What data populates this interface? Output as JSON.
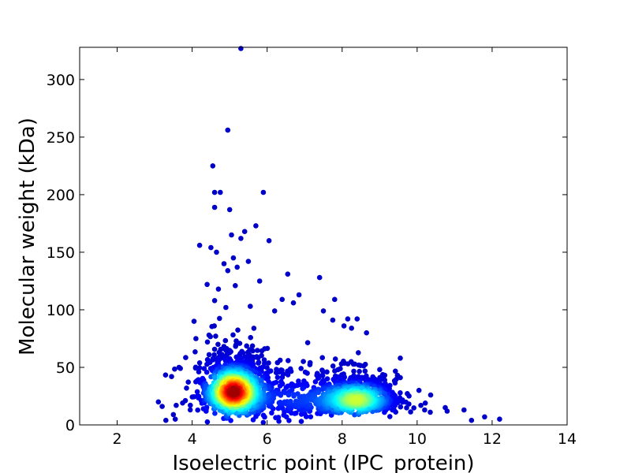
{
  "chart_data": {
    "type": "scatter",
    "title": "",
    "xlabel": "Isoelectric point (IPC_protein)",
    "ylabel": "Molecular weight (kDa)",
    "xlim": [
      1,
      14
    ],
    "ylim": [
      0,
      328
    ],
    "xticks": [
      2,
      4,
      6,
      8,
      10,
      12,
      14
    ],
    "yticks": [
      0,
      50,
      100,
      150,
      200,
      250,
      300
    ],
    "grid": false,
    "legend": "none",
    "colormap": "jet (point density)",
    "point_color_low": "#0000c8",
    "point_color_high": "#a00000",
    "clusters": [
      {
        "center": [
          5.1,
          29
        ],
        "spread": [
          0.45,
          13
        ],
        "count": 1200
      },
      {
        "center": [
          8.4,
          22
        ],
        "spread": [
          0.55,
          9
        ],
        "count": 800
      },
      {
        "center": [
          6.8,
          22
        ],
        "spread": [
          0.8,
          14
        ],
        "count": 250
      }
    ],
    "outliers": [
      [
        5.3,
        327
      ],
      [
        4.95,
        256
      ],
      [
        4.55,
        225
      ],
      [
        4.6,
        202
      ],
      [
        4.75,
        202
      ],
      [
        5.9,
        202
      ],
      [
        5.0,
        187
      ],
      [
        4.6,
        189
      ],
      [
        5.7,
        173
      ],
      [
        5.4,
        168
      ],
      [
        5.05,
        165
      ],
      [
        5.3,
        162
      ],
      [
        6.05,
        160
      ],
      [
        4.2,
        156
      ],
      [
        4.5,
        154
      ],
      [
        4.65,
        150
      ],
      [
        5.1,
        145
      ],
      [
        5.5,
        142
      ],
      [
        4.85,
        140
      ],
      [
        5.2,
        137
      ],
      [
        4.95,
        134
      ],
      [
        6.55,
        131
      ],
      [
        7.4,
        128
      ],
      [
        5.8,
        125
      ],
      [
        4.4,
        122
      ],
      [
        5.15,
        121
      ],
      [
        4.7,
        118
      ],
      [
        6.85,
        113
      ],
      [
        4.6,
        108
      ],
      [
        6.4,
        109
      ],
      [
        7.8,
        109
      ],
      [
        6.7,
        106
      ],
      [
        5.55,
        103
      ],
      [
        4.9,
        102
      ],
      [
        6.2,
        99
      ],
      [
        7.5,
        99
      ],
      [
        8.4,
        92
      ],
      [
        8.15,
        92
      ],
      [
        8.05,
        86
      ],
      [
        4.05,
        90
      ],
      [
        7.75,
        91
      ],
      [
        8.25,
        84
      ],
      [
        8.65,
        80
      ],
      [
        9.55,
        58
      ],
      [
        9.55,
        41
      ],
      [
        10.05,
        30
      ],
      [
        10.1,
        17
      ],
      [
        10.2,
        13
      ],
      [
        10.35,
        11
      ],
      [
        10.75,
        15
      ],
      [
        10.8,
        12
      ],
      [
        11.25,
        13
      ],
      [
        11.45,
        4
      ],
      [
        11.8,
        7
      ],
      [
        12.2,
        5
      ],
      [
        3.1,
        20
      ],
      [
        3.2,
        16
      ],
      [
        3.5,
        9
      ],
      [
        3.45,
        42
      ],
      [
        3.65,
        50
      ],
      [
        3.55,
        5
      ],
      [
        3.3,
        4
      ],
      [
        3.85,
        32
      ],
      [
        4.1,
        75
      ],
      [
        4.45,
        78
      ]
    ]
  }
}
